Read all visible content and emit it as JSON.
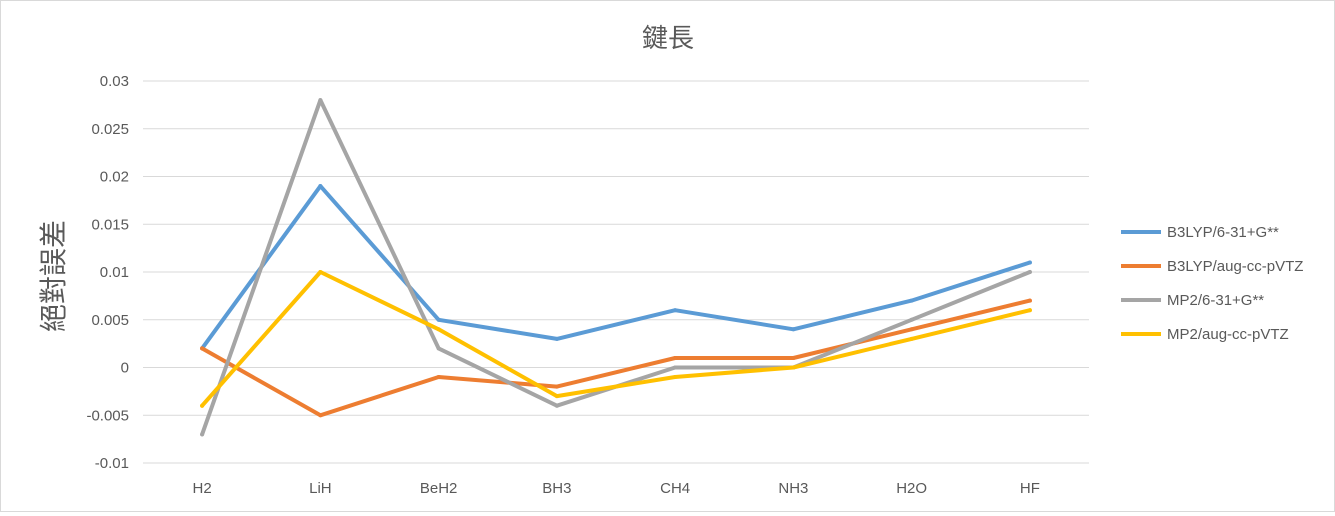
{
  "chart_data": {
    "type": "line",
    "title": "鍵長",
    "xlabel": "",
    "ylabel": "絕對誤差",
    "categories": [
      "H2",
      "LiH",
      "BeH2",
      "BH3",
      "CH4",
      "NH3",
      "H2O",
      "HF"
    ],
    "ylim": [
      -0.01,
      0.03
    ],
    "yticks": [
      "0.03",
      "0.025",
      "0.02",
      "0.015",
      "0.01",
      "0.005",
      "0",
      "-0.005",
      "-0.01"
    ],
    "grid": true,
    "legend_position": "right",
    "series": [
      {
        "name": "B3LYP/6-31+G**",
        "color": "#5b9bd5",
        "values": [
          0.002,
          0.019,
          0.005,
          0.003,
          0.006,
          0.004,
          0.007,
          0.011
        ]
      },
      {
        "name": "B3LYP/aug-cc-pVTZ",
        "color": "#ed7d31",
        "values": [
          0.002,
          -0.005,
          -0.001,
          -0.002,
          0.001,
          0.001,
          0.004,
          0.007
        ]
      },
      {
        "name": "MP2/6-31+G**",
        "color": "#a5a5a5",
        "values": [
          -0.007,
          0.028,
          0.002,
          -0.004,
          0.0,
          0.0,
          0.005,
          0.01
        ]
      },
      {
        "name": "MP2/aug-cc-pVTZ",
        "color": "#ffc000",
        "values": [
          -0.004,
          0.01,
          0.004,
          -0.003,
          -0.001,
          0.0,
          0.003,
          0.006
        ]
      }
    ]
  }
}
